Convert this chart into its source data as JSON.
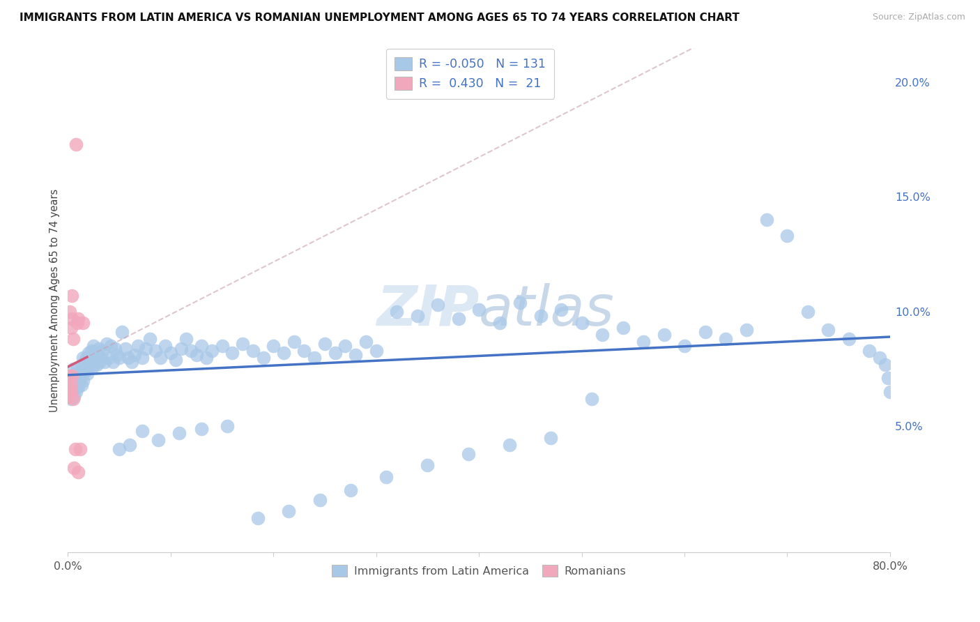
{
  "title": "IMMIGRANTS FROM LATIN AMERICA VS ROMANIAN UNEMPLOYMENT AMONG AGES 65 TO 74 YEARS CORRELATION CHART",
  "source": "Source: ZipAtlas.com",
  "ylabel": "Unemployment Among Ages 65 to 74 years",
  "xlim": [
    0.0,
    0.8
  ],
  "ylim": [
    -0.005,
    0.215
  ],
  "yticks": [
    0.05,
    0.1,
    0.15,
    0.2
  ],
  "ytick_labels": [
    "5.0%",
    "10.0%",
    "15.0%",
    "20.0%"
  ],
  "xticks": [
    0.0,
    0.1,
    0.2,
    0.3,
    0.4,
    0.5,
    0.6,
    0.7,
    0.8
  ],
  "color_blue": "#a8c8e8",
  "color_pink": "#f2a8bc",
  "line_blue": "#4472c4",
  "line_pink": "#d45878",
  "line_dashed_color": "#c8a0b0",
  "blue_r": -0.05,
  "blue_n": 131,
  "pink_r": 0.43,
  "pink_n": 21,
  "blue_x": [
    0.002,
    0.003,
    0.003,
    0.004,
    0.004,
    0.005,
    0.005,
    0.006,
    0.006,
    0.007,
    0.007,
    0.008,
    0.008,
    0.009,
    0.009,
    0.01,
    0.01,
    0.011,
    0.012,
    0.013,
    0.014,
    0.015,
    0.015,
    0.016,
    0.017,
    0.018,
    0.019,
    0.02,
    0.021,
    0.022,
    0.023,
    0.024,
    0.025,
    0.026,
    0.027,
    0.028,
    0.029,
    0.03,
    0.031,
    0.032,
    0.034,
    0.036,
    0.038,
    0.04,
    0.042,
    0.044,
    0.046,
    0.048,
    0.05,
    0.053,
    0.056,
    0.059,
    0.062,
    0.065,
    0.068,
    0.072,
    0.076,
    0.08,
    0.085,
    0.09,
    0.095,
    0.1,
    0.105,
    0.11,
    0.115,
    0.12,
    0.125,
    0.13,
    0.135,
    0.14,
    0.15,
    0.16,
    0.17,
    0.18,
    0.19,
    0.2,
    0.21,
    0.22,
    0.23,
    0.24,
    0.25,
    0.26,
    0.27,
    0.28,
    0.29,
    0.3,
    0.32,
    0.34,
    0.36,
    0.38,
    0.4,
    0.42,
    0.44,
    0.46,
    0.48,
    0.5,
    0.52,
    0.54,
    0.56,
    0.58,
    0.6,
    0.62,
    0.64,
    0.66,
    0.68,
    0.7,
    0.72,
    0.74,
    0.76,
    0.78,
    0.79,
    0.795,
    0.798,
    0.8,
    0.51,
    0.47,
    0.43,
    0.39,
    0.35,
    0.31,
    0.275,
    0.245,
    0.215,
    0.185,
    0.155,
    0.13,
    0.108,
    0.088,
    0.072,
    0.06,
    0.05
  ],
  "blue_y": [
    0.067,
    0.062,
    0.07,
    0.065,
    0.072,
    0.068,
    0.075,
    0.063,
    0.07,
    0.067,
    0.073,
    0.065,
    0.072,
    0.068,
    0.075,
    0.067,
    0.073,
    0.07,
    0.072,
    0.068,
    0.075,
    0.08,
    0.07,
    0.078,
    0.074,
    0.08,
    0.073,
    0.082,
    0.076,
    0.079,
    0.083,
    0.076,
    0.085,
    0.079,
    0.083,
    0.077,
    0.081,
    0.084,
    0.078,
    0.08,
    0.083,
    0.078,
    0.086,
    0.08,
    0.085,
    0.078,
    0.084,
    0.081,
    0.08,
    0.091,
    0.084,
    0.08,
    0.078,
    0.081,
    0.085,
    0.08,
    0.084,
    0.088,
    0.083,
    0.08,
    0.085,
    0.082,
    0.079,
    0.084,
    0.088,
    0.083,
    0.081,
    0.085,
    0.08,
    0.083,
    0.085,
    0.082,
    0.086,
    0.083,
    0.08,
    0.085,
    0.082,
    0.087,
    0.083,
    0.08,
    0.086,
    0.082,
    0.085,
    0.081,
    0.087,
    0.083,
    0.1,
    0.098,
    0.103,
    0.097,
    0.101,
    0.095,
    0.104,
    0.098,
    0.101,
    0.095,
    0.09,
    0.093,
    0.087,
    0.09,
    0.085,
    0.091,
    0.088,
    0.092,
    0.14,
    0.133,
    0.1,
    0.092,
    0.088,
    0.083,
    0.08,
    0.077,
    0.071,
    0.065,
    0.062,
    0.045,
    0.042,
    0.038,
    0.033,
    0.028,
    0.022,
    0.018,
    0.013,
    0.01,
    0.05,
    0.049,
    0.047,
    0.044,
    0.048,
    0.042,
    0.04
  ],
  "pink_x": [
    0.001,
    0.001,
    0.002,
    0.002,
    0.002,
    0.003,
    0.003,
    0.003,
    0.004,
    0.004,
    0.004,
    0.005,
    0.005,
    0.006,
    0.007,
    0.008,
    0.009,
    0.01,
    0.01,
    0.012,
    0.015
  ],
  "pink_y": [
    0.067,
    0.063,
    0.1,
    0.072,
    0.065,
    0.093,
    0.068,
    0.065,
    0.107,
    0.097,
    0.072,
    0.088,
    0.062,
    0.032,
    0.04,
    0.173,
    0.095,
    0.03,
    0.097,
    0.04,
    0.095
  ]
}
